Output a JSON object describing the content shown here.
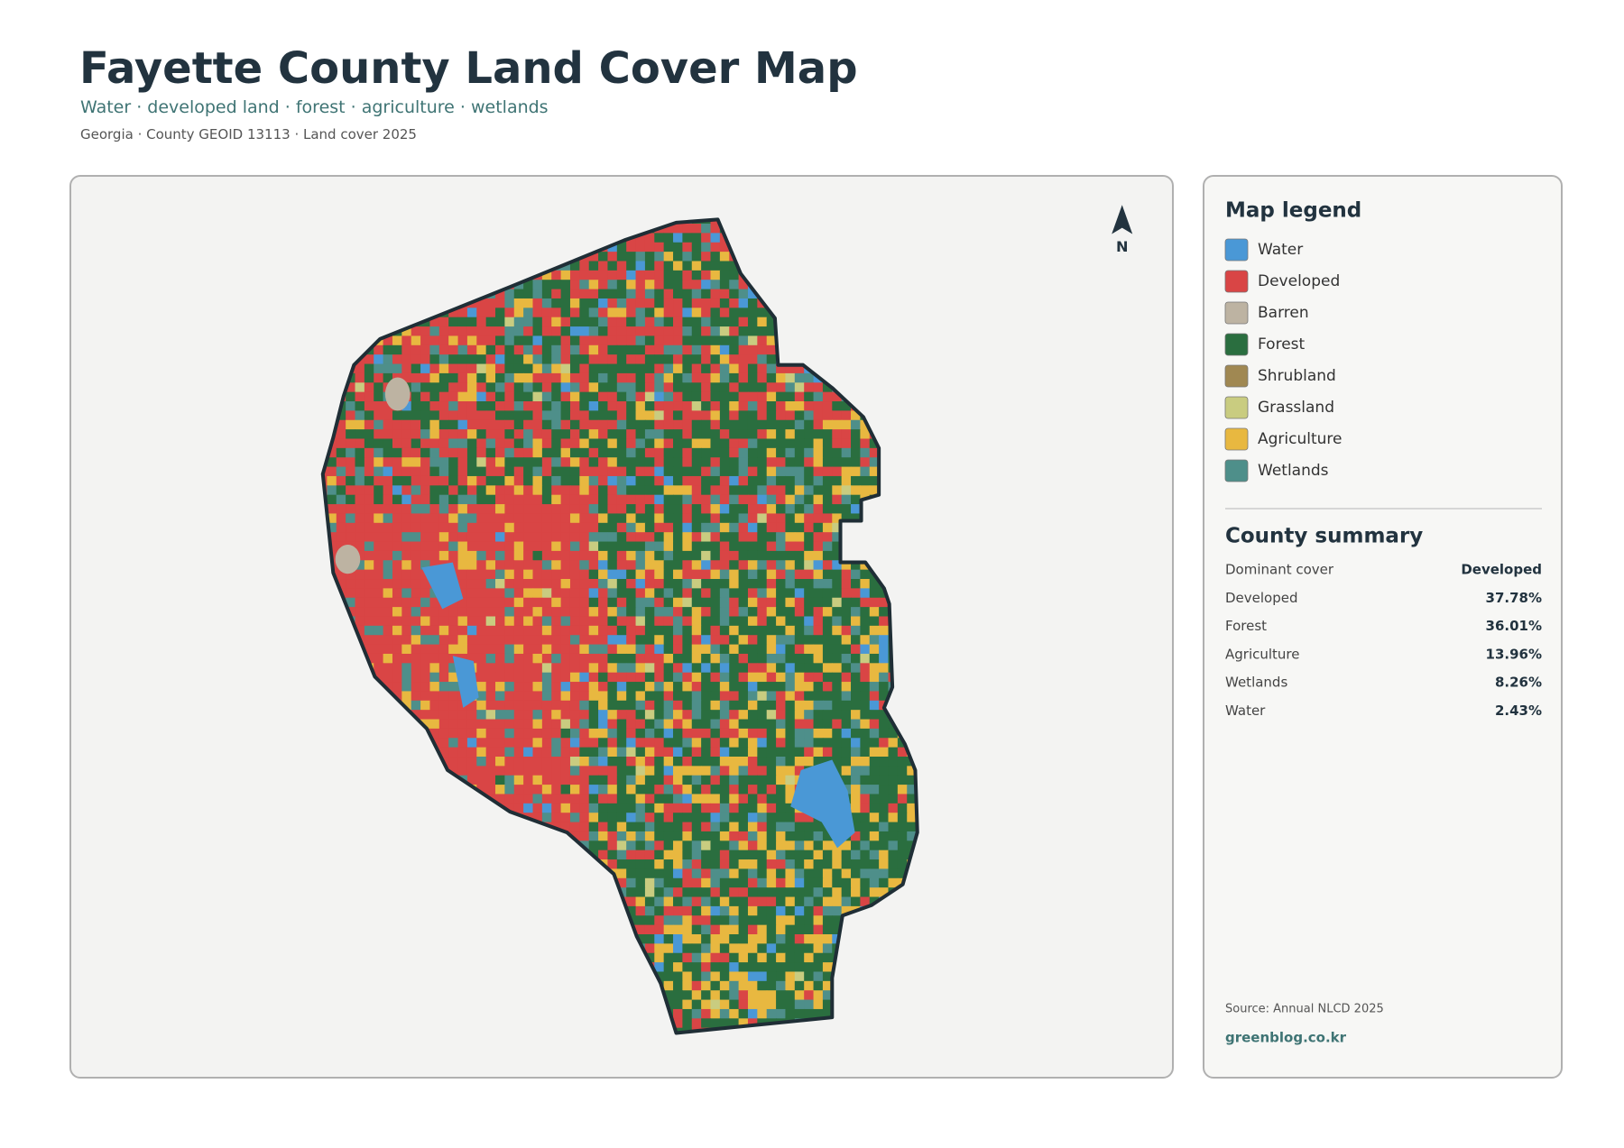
{
  "header": {
    "title": "Fayette County Land Cover Map",
    "subtitle": "Water · developed land · forest · agriculture · wetlands",
    "meta": "Georgia · County GEOID 13113 · Land cover 2025"
  },
  "map": {
    "north_label": "N"
  },
  "legend": {
    "title": "Map legend",
    "items": [
      {
        "label": "Water",
        "color": "#4a98d6"
      },
      {
        "label": "Developed",
        "color": "#d94545"
      },
      {
        "label": "Barren",
        "color": "#bdb3a2"
      },
      {
        "label": "Forest",
        "color": "#2a6e3f"
      },
      {
        "label": "Shrubland",
        "color": "#a08852"
      },
      {
        "label": "Grassland",
        "color": "#c9cc80"
      },
      {
        "label": "Agriculture",
        "color": "#e8b840"
      },
      {
        "label": "Wetlands",
        "color": "#4e8f8a"
      }
    ]
  },
  "summary": {
    "title": "County summary",
    "rows": [
      [
        "Dominant cover",
        "Developed"
      ],
      [
        "Developed",
        "37.78%"
      ],
      [
        "Forest",
        "36.01%"
      ],
      [
        "Agriculture",
        "13.96%"
      ],
      [
        "Wetlands",
        "8.26%"
      ],
      [
        "Water",
        "2.43%"
      ]
    ]
  },
  "footer": {
    "source": "Source: Annual NLCD 2025",
    "site": "greenblog.co.kr"
  }
}
